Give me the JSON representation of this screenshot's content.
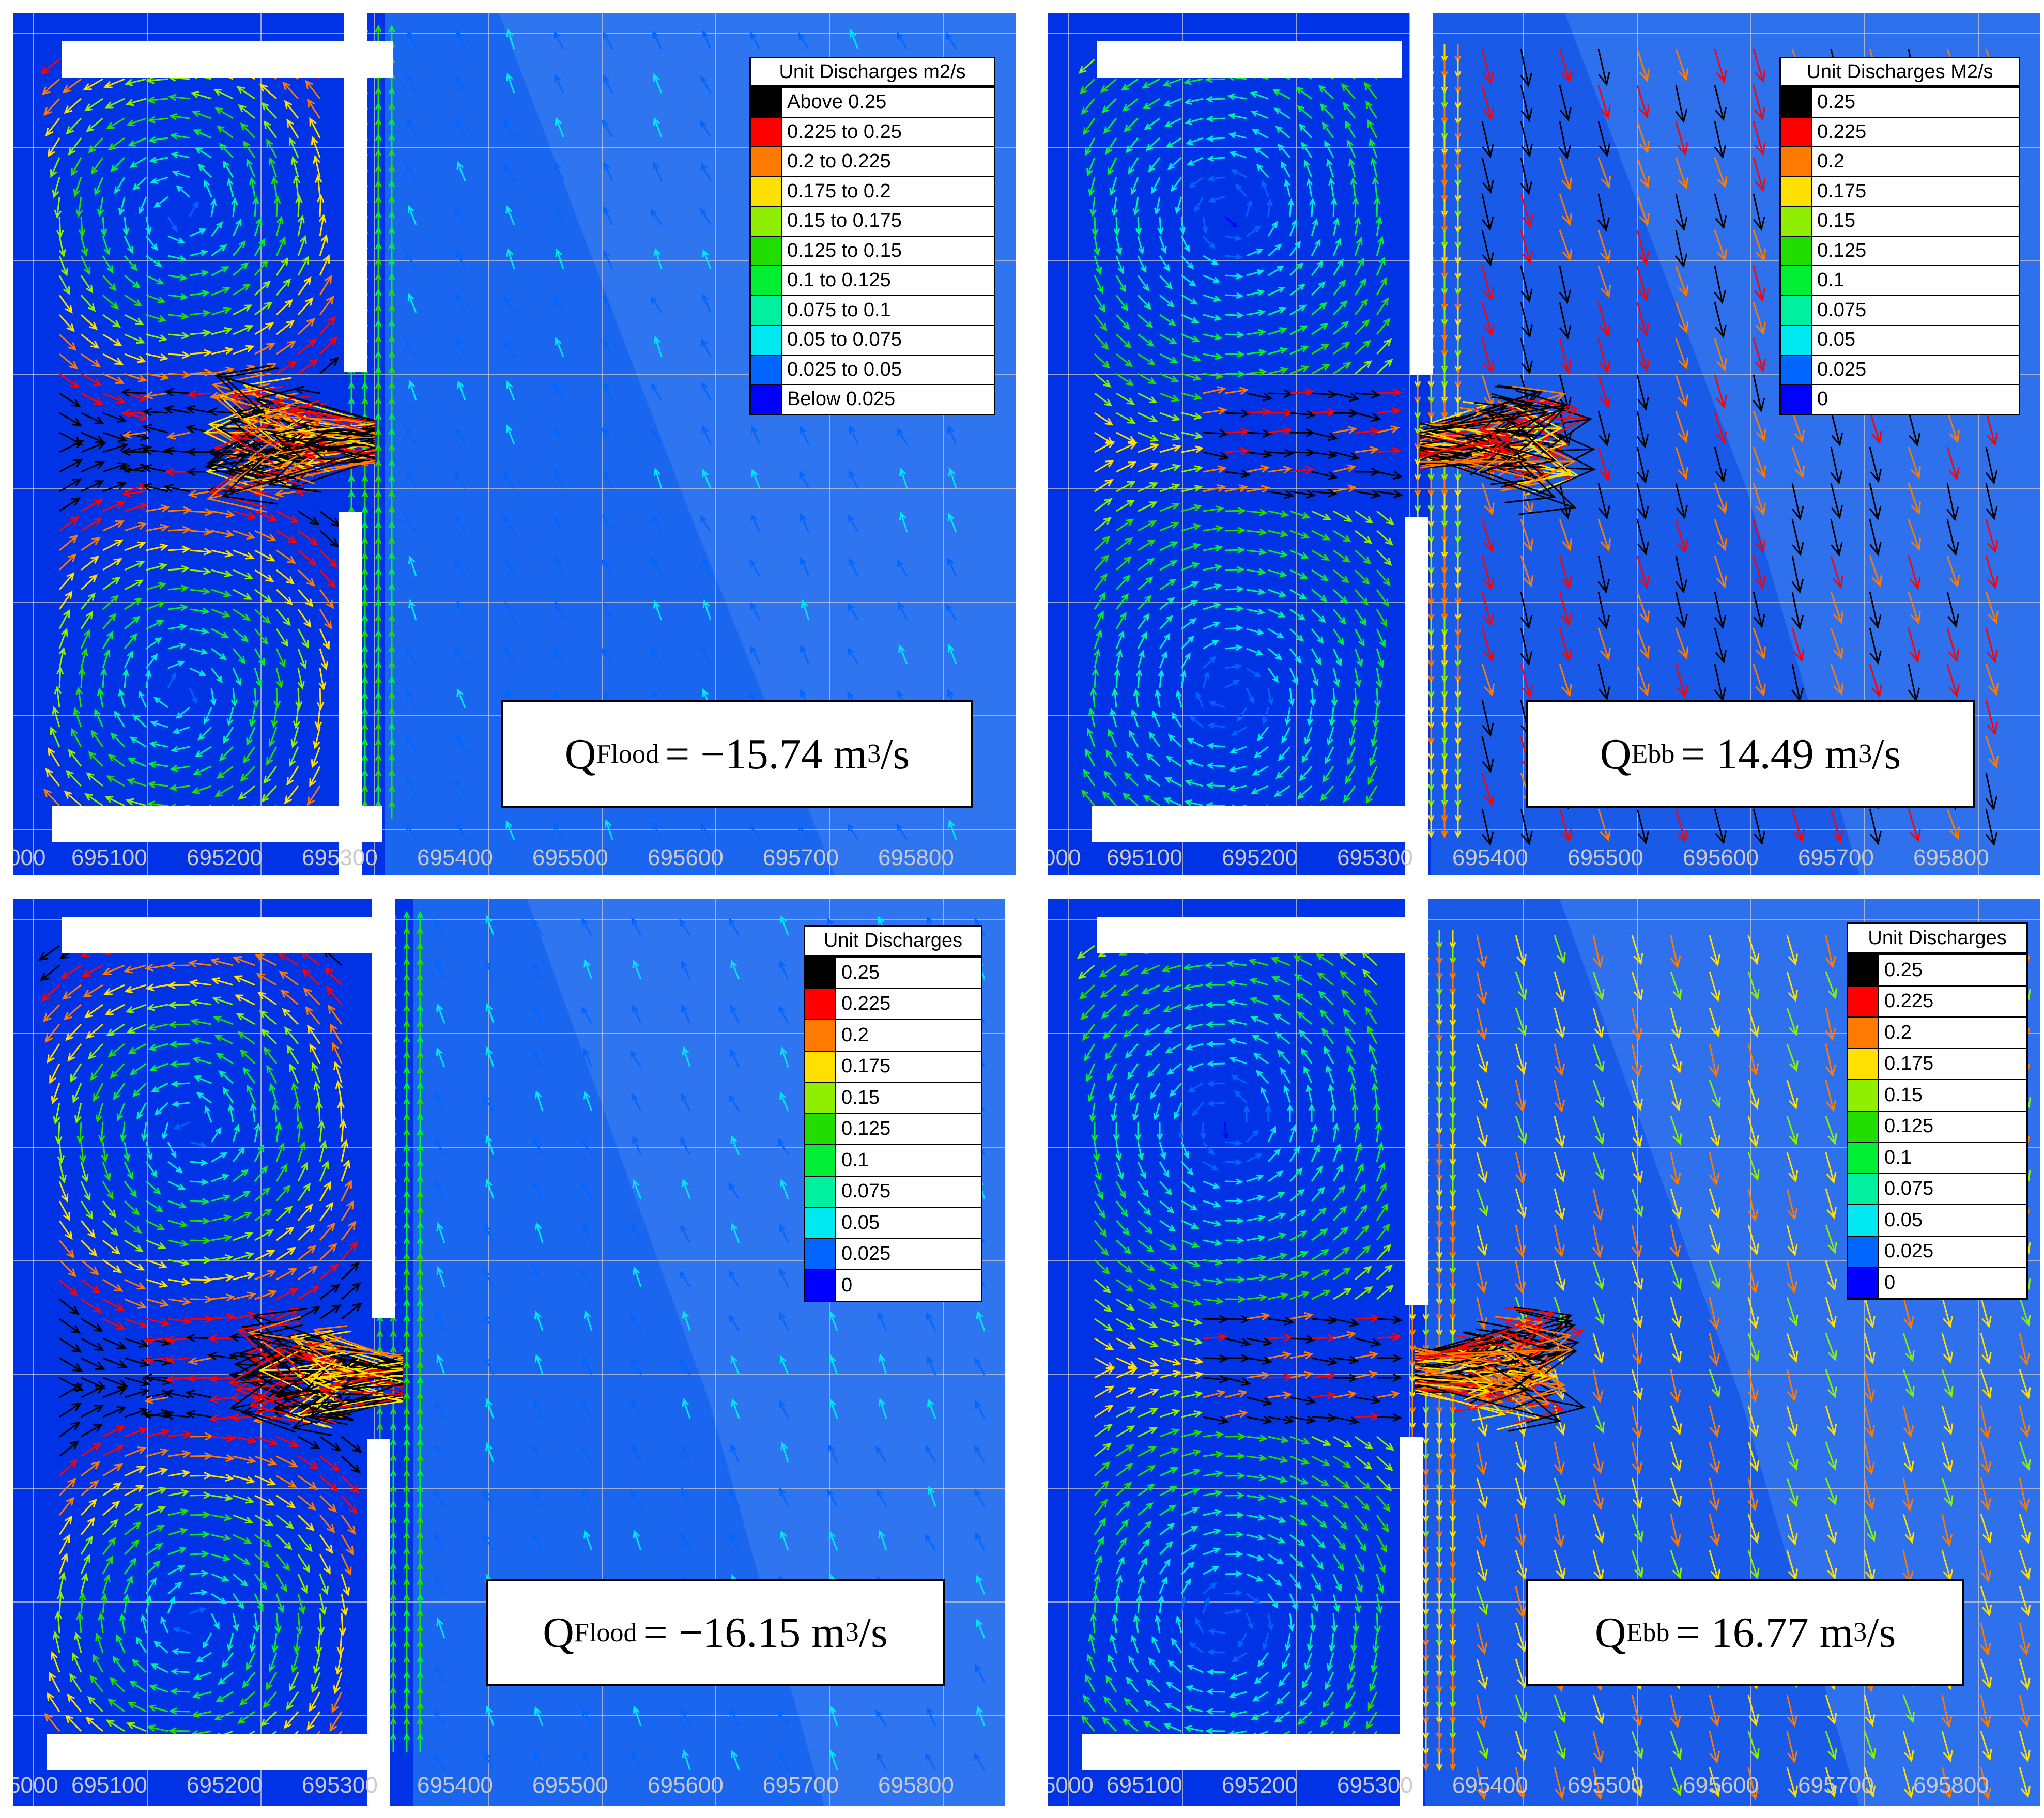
{
  "panels": [
    {
      "id": "top-left",
      "scenario": "flood",
      "legend_title": "Unit Discharges m2/s",
      "legend_entries": [
        "Above 0.25",
        "0.225 to 0.25",
        "0.2 to 0.225",
        "0.175 to 0.2",
        "0.15 to 0.175",
        "0.125 to 0.15",
        "0.1 to 0.125",
        "0.075 to 0.1",
        "0.05 to 0.075",
        "0.025 to 0.05",
        "Below 0.025"
      ],
      "q_symbol": "Q",
      "q_subscript": "Flood",
      "q_value": "= −15.74 m",
      "q_exp": "3",
      "q_unit": "/s",
      "x_ticks": [
        "000",
        "695100",
        "695200",
        "695300",
        "695400",
        "695500",
        "695600",
        "695700",
        "695800"
      ]
    },
    {
      "id": "top-right",
      "scenario": "ebb",
      "legend_title": "Unit Discharges M2/s",
      "legend_entries": [
        "0.25",
        "0.225",
        "0.2",
        "0.175",
        "0.15",
        "0.125",
        "0.1",
        "0.075",
        "0.05",
        "0.025",
        "0"
      ],
      "q_symbol": "Q",
      "q_subscript": "Ebb",
      "q_value": "= 14.49 m",
      "q_exp": "3",
      "q_unit": "/s",
      "x_ticks": [
        "000",
        "695100",
        "695200",
        "695300",
        "695400",
        "695500",
        "695600",
        "695700",
        "695800"
      ]
    },
    {
      "id": "bottom-left",
      "scenario": "flood",
      "legend_title": "Unit Discharges",
      "legend_entries": [
        "0.25",
        "0.225",
        "0.2",
        "0.175",
        "0.15",
        "0.125",
        "0.1",
        "0.075",
        "0.05",
        "0.025",
        "0"
      ],
      "q_symbol": "Q",
      "q_subscript": "Flood",
      "q_value": "= −16.15 m",
      "q_exp": "3",
      "q_unit": "/s",
      "x_ticks": [
        "5000",
        "695100",
        "695200",
        "695300",
        "695400",
        "695500",
        "695600",
        "695700",
        "695800"
      ]
    },
    {
      "id": "bottom-right",
      "scenario": "ebb",
      "legend_title": "Unit Discharges",
      "legend_entries": [
        "0.25",
        "0.225",
        "0.2",
        "0.175",
        "0.15",
        "0.125",
        "0.1",
        "0.075",
        "0.05",
        "0.025",
        "0"
      ],
      "q_symbol": "Q",
      "q_subscript": "Ebb",
      "q_value": "= 16.77 m",
      "q_exp": "3",
      "q_unit": "/s",
      "x_ticks": [
        "5000",
        "695100",
        "695200",
        "695300",
        "695400",
        "695500",
        "695600",
        "695700",
        "695800"
      ]
    }
  ],
  "legend_colors": [
    "#000000",
    "#ff0000",
    "#ff7a00",
    "#ffe000",
    "#90ee00",
    "#22dd00",
    "#00ee33",
    "#00f0a0",
    "#00e8f0",
    "#0066ff",
    "#0000ff"
  ],
  "chart_data": [
    {
      "type": "vector-field",
      "panel": "top-left",
      "legend_title": "Unit Discharges m2/s",
      "discharge_m3_per_s": -15.74,
      "x_ticks": [
        695100,
        695200,
        695300,
        695400,
        695500,
        695600,
        695700,
        695800
      ]
    },
    {
      "type": "vector-field",
      "panel": "top-right",
      "legend_title": "Unit Discharges M2/s",
      "discharge_m3_per_s": 14.49,
      "x_ticks": [
        695100,
        695200,
        695300,
        695400,
        695500,
        695600,
        695700,
        695800
      ]
    },
    {
      "type": "vector-field",
      "panel": "bottom-left",
      "legend_title": "Unit Discharges",
      "discharge_m3_per_s": -16.15,
      "x_ticks": [
        695100,
        695200,
        695300,
        695400,
        695500,
        695600,
        695700,
        695800
      ]
    },
    {
      "type": "vector-field",
      "panel": "bottom-right",
      "legend_title": "Unit Discharges",
      "discharge_m3_per_s": 16.77,
      "x_ticks": [
        695100,
        695200,
        695300,
        695400,
        695500,
        695600,
        695700,
        695800
      ]
    }
  ]
}
